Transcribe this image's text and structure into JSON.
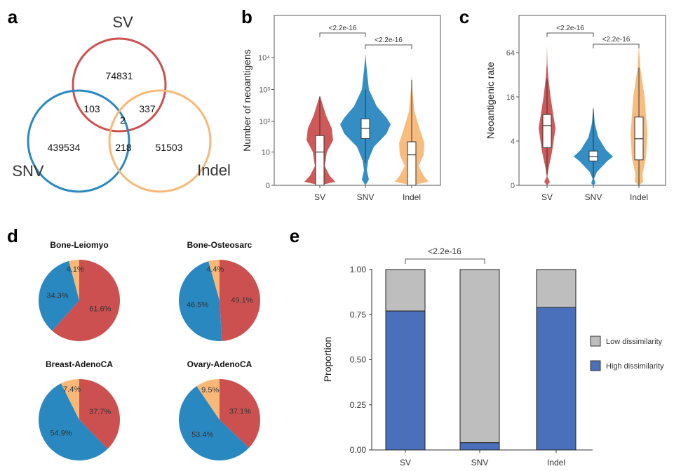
{
  "colors": {
    "SV": "#cc5050",
    "SNV": "#2a88c0",
    "Indel": "#f8b878",
    "low": "#bebebe",
    "high": "#4a70bb"
  },
  "panel_labels": [
    "a",
    "b",
    "c",
    "d",
    "e"
  ],
  "chart_data": [
    {
      "panel": "a",
      "type": "venn",
      "sets": [
        "SV",
        "SNV",
        "Indel"
      ],
      "regions": {
        "SV_only": "74831",
        "SV_SNV": "103",
        "SV_Indel": "337",
        "SV_SNV_Indel": "2",
        "SNV_only": "439534",
        "SNV_Indel": "218",
        "Indel_only": "51503"
      }
    },
    {
      "panel": "b",
      "type": "violin",
      "ylabel": "Number of neoantigens",
      "yscale": "pseudo-log",
      "yticks": [
        "0",
        "10",
        "10²",
        "10³",
        "10⁴"
      ],
      "categories": [
        "SV",
        "SNV",
        "Indel"
      ],
      "box": [
        {
          "median": 10,
          "q1": 0,
          "q3": 35,
          "whisker_low": 0,
          "whisker_high": 600
        },
        {
          "median": 60,
          "q1": 28,
          "q3": 120,
          "whisker_low": 4,
          "whisker_high": 1000
        },
        {
          "median": 8,
          "q1": 0,
          "q3": 22,
          "whisker_low": 0,
          "whisker_high": 2000
        }
      ],
      "comparisons": [
        {
          "groups": [
            "SV",
            "SNV"
          ],
          "label": "<2.2e-16"
        },
        {
          "groups": [
            "SNV",
            "Indel"
          ],
          "label": "<2.2e-16"
        }
      ]
    },
    {
      "panel": "c",
      "type": "violin",
      "ylabel": "Neoantigenic rate",
      "yscale": "log4",
      "yticks": [
        "0",
        "4",
        "16",
        "64"
      ],
      "categories": [
        "SV",
        "SNV",
        "Indel"
      ],
      "box": [
        {
          "median": 6.5,
          "q1": 3.4,
          "q3": 9.2,
          "whisker_low": 1.0,
          "whisker_high": 28
        },
        {
          "median": 2.6,
          "q1": 2.2,
          "q3": 3.1,
          "whisker_low": 0.6,
          "whisker_high": 11
        },
        {
          "median": 4.3,
          "q1": 2.3,
          "q3": 8.5,
          "whisker_low": 0,
          "whisker_high": 40
        }
      ],
      "comparisons": [
        {
          "groups": [
            "SV",
            "SNV"
          ],
          "label": "<2.2e-16"
        },
        {
          "groups": [
            "SNV",
            "Indel"
          ],
          "label": "<2.2e-16"
        }
      ]
    },
    {
      "panel": "d",
      "type": "pie",
      "slice_order": [
        "SV",
        "SNV",
        "Indel"
      ],
      "pies": [
        {
          "title": "Bone-Leiomyo",
          "values": [
            61.6,
            34.3,
            4.1
          ],
          "labels": [
            "61.6%",
            "34.3%",
            "4.1%"
          ]
        },
        {
          "title": "Bone-Osteosarc",
          "values": [
            49.1,
            46.5,
            4.4
          ],
          "labels": [
            "49.1%",
            "46.5%",
            "4.4%"
          ]
        },
        {
          "title": "Breast-AdenoCA",
          "values": [
            37.7,
            54.9,
            7.4
          ],
          "labels": [
            "37.7%",
            "54.9%",
            "7.4%"
          ]
        },
        {
          "title": "Ovary-AdenoCA",
          "values": [
            37.1,
            53.4,
            9.5
          ],
          "labels": [
            "37.1%",
            "53.4%",
            "9.5%"
          ]
        }
      ]
    },
    {
      "panel": "e",
      "type": "bar",
      "stacked": true,
      "ylabel": "Proportion",
      "ylim": [
        0,
        1
      ],
      "yticks": [
        "0.00",
        "0.25",
        "0.50",
        "0.75",
        "1.00"
      ],
      "categories": [
        "SV",
        "SNV",
        "Indel"
      ],
      "series": [
        {
          "name": "High dissimilarity",
          "values": [
            0.77,
            0.04,
            0.79
          ]
        },
        {
          "name": "Low dissimilarity",
          "values": [
            0.23,
            0.96,
            0.21
          ]
        }
      ],
      "legend": [
        "Low dissimilarity",
        "High dissimilarity"
      ],
      "legend_position": "right",
      "comparisons": [
        {
          "groups": [
            "SV",
            "SNV"
          ],
          "label": "<2.2e-16"
        }
      ]
    }
  ]
}
